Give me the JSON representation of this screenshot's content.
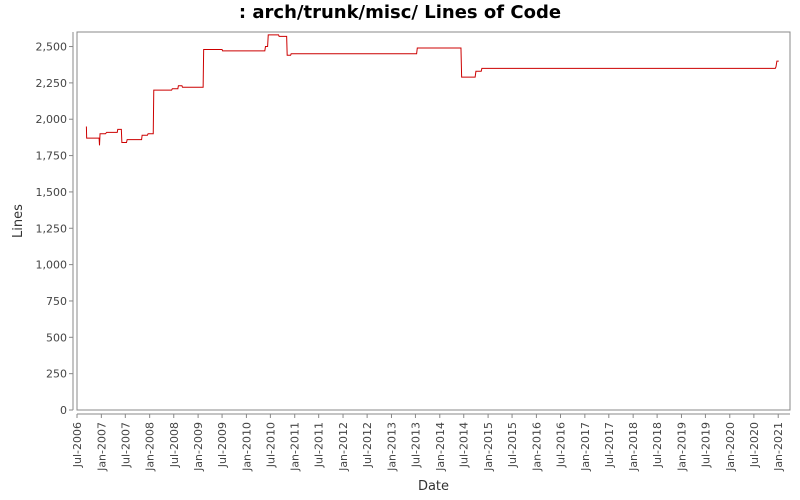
{
  "chart_data": {
    "type": "line",
    "title": ": arch/trunk/misc/ Lines of Code",
    "xlabel": "Date",
    "ylabel": "Lines",
    "ylim": [
      0,
      2600
    ],
    "xlim": [
      "2006-07-01",
      "2021-03-31"
    ],
    "grid": false,
    "legend": "none",
    "line_color": "#cc0000",
    "y_ticks": [
      0,
      250,
      500,
      750,
      1000,
      1250,
      1500,
      1750,
      2000,
      2250,
      2500
    ],
    "y_tick_labels": [
      "0",
      "250",
      "500",
      "750",
      "1,000",
      "1,250",
      "1,500",
      "1,750",
      "2,000",
      "2,250",
      "2,500"
    ],
    "x_ticks": [
      "2006-07-01",
      "2007-01-01",
      "2007-07-01",
      "2008-01-01",
      "2008-07-01",
      "2009-01-01",
      "2009-07-01",
      "2010-01-01",
      "2010-07-01",
      "2011-01-01",
      "2011-07-01",
      "2012-01-01",
      "2012-07-01",
      "2013-01-01",
      "2013-07-01",
      "2014-01-01",
      "2014-07-01",
      "2015-01-01",
      "2015-07-01",
      "2016-01-01",
      "2016-07-01",
      "2017-01-01",
      "2017-07-01",
      "2018-01-01",
      "2018-07-01",
      "2019-01-01",
      "2019-07-01",
      "2020-01-01",
      "2020-07-01",
      "2021-01-01"
    ],
    "x_tick_labels": [
      "Jul-2006",
      "Jan-2007",
      "Jul-2007",
      "Jan-2008",
      "Jul-2008",
      "Jan-2009",
      "Jul-2009",
      "Jan-2010",
      "Jul-2010",
      "Jan-2011",
      "Jul-2011",
      "Jan-2012",
      "Jul-2012",
      "Jan-2013",
      "Jul-2013",
      "Jan-2014",
      "Jul-2014",
      "Jan-2015",
      "Jul-2015",
      "Jan-2016",
      "Jul-2016",
      "Jan-2017",
      "Jul-2017",
      "Jan-2018",
      "Jul-2018",
      "Jan-2019",
      "Jul-2019",
      "Jan-2020",
      "Jul-2020",
      "Jan-2021"
    ],
    "series": [
      {
        "points": [
          [
            "2006-09-10",
            1950
          ],
          [
            "2006-09-12",
            1870
          ],
          [
            "2006-12-15",
            1870
          ],
          [
            "2006-12-18",
            1820
          ],
          [
            "2006-12-22",
            1900
          ],
          [
            "2007-02-01",
            1900
          ],
          [
            "2007-02-10",
            1910
          ],
          [
            "2007-05-01",
            1910
          ],
          [
            "2007-05-05",
            1930
          ],
          [
            "2007-06-01",
            1930
          ],
          [
            "2007-06-05",
            1840
          ],
          [
            "2007-07-10",
            1840
          ],
          [
            "2007-07-15",
            1860
          ],
          [
            "2007-11-01",
            1860
          ],
          [
            "2007-11-05",
            1890
          ],
          [
            "2007-12-15",
            1890
          ],
          [
            "2007-12-20",
            1900
          ],
          [
            "2008-01-28",
            1900
          ],
          [
            "2008-02-01",
            2200
          ],
          [
            "2008-06-15",
            2200
          ],
          [
            "2008-06-20",
            2210
          ],
          [
            "2008-08-01",
            2210
          ],
          [
            "2008-08-05",
            2230
          ],
          [
            "2008-09-01",
            2230
          ],
          [
            "2008-09-05",
            2220
          ],
          [
            "2009-02-08",
            2220
          ],
          [
            "2009-02-12",
            2480
          ],
          [
            "2009-07-01",
            2480
          ],
          [
            "2009-07-05",
            2470
          ],
          [
            "2010-05-20",
            2470
          ],
          [
            "2010-05-25",
            2500
          ],
          [
            "2010-06-10",
            2500
          ],
          [
            "2010-06-15",
            2580
          ],
          [
            "2010-09-01",
            2580
          ],
          [
            "2010-09-05",
            2570
          ],
          [
            "2010-11-01",
            2570
          ],
          [
            "2010-11-05",
            2440
          ],
          [
            "2010-12-01",
            2440
          ],
          [
            "2010-12-05",
            2450
          ],
          [
            "2013-07-10",
            2450
          ],
          [
            "2013-07-15",
            2490
          ],
          [
            "2014-06-10",
            2490
          ],
          [
            "2014-06-15",
            2290
          ],
          [
            "2014-09-25",
            2290
          ],
          [
            "2014-10-01",
            2330
          ],
          [
            "2014-11-10",
            2330
          ],
          [
            "2014-11-15",
            2350
          ],
          [
            "2020-12-10",
            2350
          ],
          [
            "2020-12-15",
            2360
          ],
          [
            "2020-12-22",
            2400
          ],
          [
            "2021-01-05",
            2400
          ]
        ]
      }
    ]
  }
}
